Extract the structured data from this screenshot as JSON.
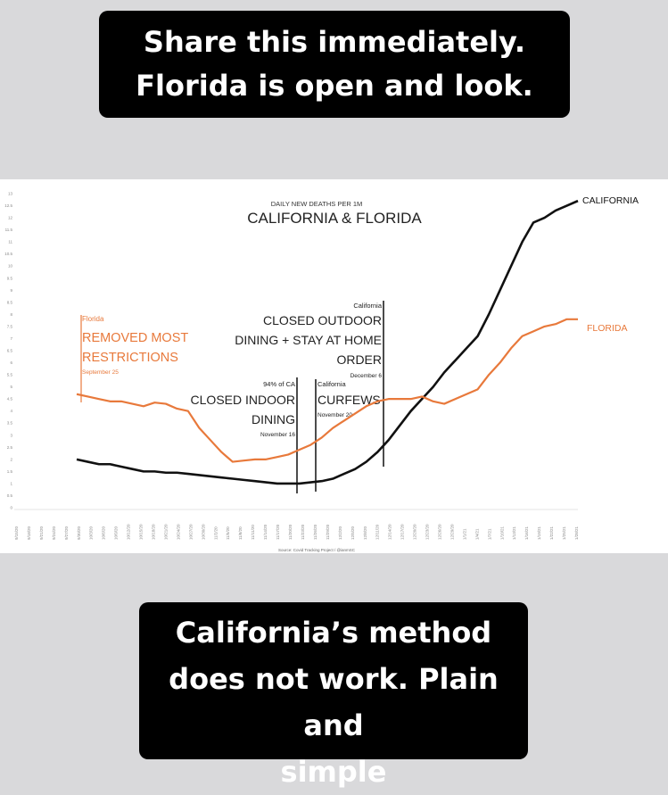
{
  "caption_top": {
    "line1": "Share this immediately.",
    "line2": "Florida is open and look."
  },
  "caption_bottom": {
    "line1": "California’s method",
    "line2": "does not work. Plain and",
    "line3": "simple"
  },
  "colors": {
    "california": "#111111",
    "florida": "#e8793b",
    "background": "#d9d9db"
  },
  "chart_data": {
    "type": "line",
    "subtitle": "DAILY NEW DEATHS PER 1M",
    "title": "CALIFORNIA & FLORIDA",
    "source": "Source: Covid Tracking Project / @ianmSC",
    "ylim": [
      0,
      13
    ],
    "yticks": [
      "0",
      "0.5",
      "1",
      "1.5",
      "2",
      "2.5",
      "3",
      "3.5",
      "4",
      "4.5",
      "5",
      "5.5",
      "6",
      "6.5",
      "7",
      "7.5",
      "8",
      "8.5",
      "9",
      "9.5",
      "10",
      "10.5",
      "11",
      "11.5",
      "12",
      "12.5",
      "13"
    ],
    "x_start_label": "9/15/20",
    "x_end_label": "1/28/21",
    "x": [
      "9/15/20",
      "9/18/20",
      "9/21/20",
      "9/24/20",
      "9/27/20",
      "9/30/20",
      "10/3/20",
      "10/6/20",
      "10/9/20",
      "10/12/20",
      "10/15/20",
      "10/18/20",
      "10/21/20",
      "10/24/20",
      "10/27/20",
      "10/30/20",
      "11/2/20",
      "11/5/20",
      "11/8/20",
      "11/11/20",
      "11/14/20",
      "11/17/20",
      "11/20/20",
      "11/23/20",
      "11/26/20",
      "11/29/20",
      "12/2/20",
      "12/5/20",
      "12/8/20",
      "12/11/20",
      "12/14/20",
      "12/17/20",
      "12/20/20",
      "12/23/20",
      "12/26/20",
      "12/29/20",
      "1/1/21",
      "1/4/21",
      "1/7/21",
      "1/10/21",
      "1/13/21",
      "1/16/21",
      "1/19/21",
      "1/22/21",
      "1/25/21",
      "1/28/21"
    ],
    "series": [
      {
        "name": "CALIFORNIA",
        "color": "#111111",
        "values": [
          2.0,
          1.9,
          1.8,
          1.8,
          1.7,
          1.6,
          1.5,
          1.5,
          1.45,
          1.45,
          1.4,
          1.35,
          1.3,
          1.25,
          1.2,
          1.15,
          1.1,
          1.05,
          1.0,
          1.0,
          1.0,
          1.05,
          1.1,
          1.2,
          1.4,
          1.6,
          1.9,
          2.3,
          2.8,
          3.4,
          4.0,
          4.5,
          5.0,
          5.6,
          6.1,
          6.6,
          7.1,
          8.0,
          9.0,
          10.0,
          11.0,
          11.8,
          12.0,
          12.3,
          12.5,
          12.7
        ]
      },
      {
        "name": "FLORIDA",
        "color": "#e8793b",
        "values": [
          4.7,
          4.6,
          4.5,
          4.4,
          4.4,
          4.3,
          4.2,
          4.35,
          4.3,
          4.1,
          4.0,
          3.3,
          2.8,
          2.3,
          1.9,
          1.95,
          2.0,
          2.0,
          2.1,
          2.2,
          2.4,
          2.6,
          2.9,
          3.3,
          3.6,
          3.9,
          4.2,
          4.4,
          4.5,
          4.5,
          4.5,
          4.6,
          4.4,
          4.3,
          4.5,
          4.7,
          4.9,
          5.5,
          6.0,
          6.6,
          7.1,
          7.3,
          7.5,
          7.6,
          7.8,
          7.8
        ]
      }
    ],
    "annotations": [
      {
        "small": "Florida",
        "big1": "REMOVED MOST",
        "big2": "RESTRICTIONS",
        "date": "September 25",
        "x": "9/26/20"
      },
      {
        "small": "94% of CA",
        "big1": "CLOSED INDOOR",
        "big2": "DINING",
        "date": "November 16",
        "x": "11/16/20"
      },
      {
        "small": "California",
        "big1": "CURFEWS",
        "big2": "",
        "date": "November 20",
        "x": "11/20/20"
      },
      {
        "small": "California",
        "big1": "CLOSED OUTDOOR",
        "big2": "DINING + STAY AT HOME",
        "big3": "ORDER",
        "date": "December 6",
        "x": "12/6/20"
      }
    ]
  }
}
